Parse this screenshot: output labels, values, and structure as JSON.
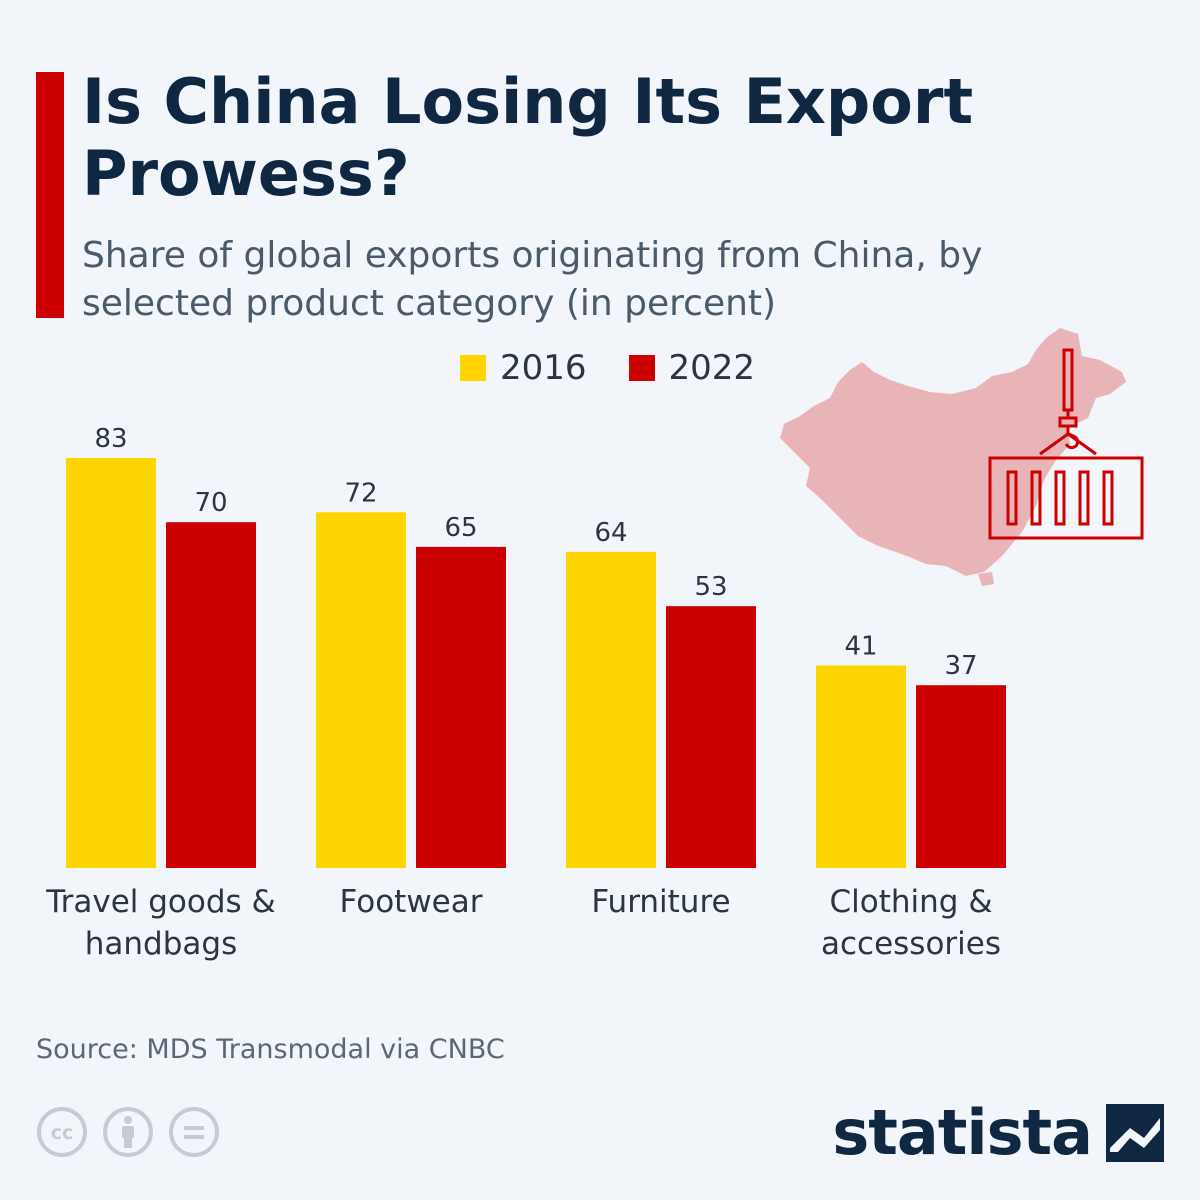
{
  "header": {
    "title": "Is China Losing Its Export Prowess?",
    "subtitle": "Share of global exports originating from China, by selected product category (in percent)"
  },
  "legend": [
    {
      "label": "2016",
      "color": "#ffd500"
    },
    {
      "label": "2022",
      "color": "#cc0000"
    }
  ],
  "chart_data": {
    "type": "bar",
    "title": "Is China Losing Its Export Prowess?",
    "subtitle": "Share of global exports originating from China, by selected product category (in percent)",
    "categories": [
      "Travel goods & handbags",
      "Footwear",
      "Furniture",
      "Clothing & accessories"
    ],
    "series": [
      {
        "name": "2016",
        "color": "#ffd500",
        "values": [
          83,
          72,
          64,
          41
        ]
      },
      {
        "name": "2022",
        "color": "#cc0000",
        "values": [
          70,
          65,
          53,
          37
        ]
      }
    ],
    "ylim": [
      0,
      90
    ],
    "grid": false,
    "legend_position": "top"
  },
  "footer": {
    "source": "Source: MDS Transmodal via CNBC",
    "brand": "statista",
    "license_icons": [
      "creative-commons-icon",
      "attribution-icon",
      "no-derivatives-icon"
    ]
  },
  "decoration": {
    "map_icon": "china-map-with-container-icon",
    "map_color": "#e8b4b8",
    "container_color": "#cc0000"
  }
}
